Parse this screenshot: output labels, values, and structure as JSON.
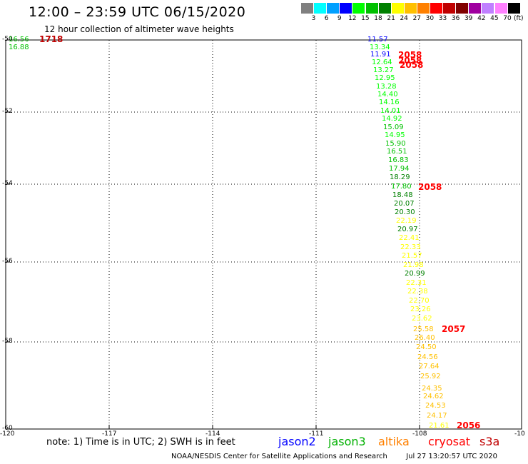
{
  "header": {
    "title": "12:00 – 23:59 UTC 06/15/2020",
    "subtitle": "12 hour collection of altimeter wave heights"
  },
  "color_scale": {
    "unit": "(ft)",
    "bins": [
      {
        "label": "3",
        "color": "#808080"
      },
      {
        "label": "6",
        "color": "#00ffff"
      },
      {
        "label": "9",
        "color": "#00a0ff"
      },
      {
        "label": "12",
        "color": "#0000ff"
      },
      {
        "label": "15",
        "color": "#00ff00"
      },
      {
        "label": "18",
        "color": "#00c000"
      },
      {
        "label": "21",
        "color": "#008000"
      },
      {
        "label": "24",
        "color": "#ffff00"
      },
      {
        "label": "27",
        "color": "#ffc000"
      },
      {
        "label": "30",
        "color": "#ff8000"
      },
      {
        "label": "33",
        "color": "#ff0000"
      },
      {
        "label": "36",
        "color": "#c00000"
      },
      {
        "label": "39",
        "color": "#800000"
      },
      {
        "label": "42",
        "color": "#a000a0"
      },
      {
        "label": "45",
        "color": "#c080ff"
      },
      {
        "label": "70",
        "color": "#ff80ff"
      },
      {
        "label": "",
        "color": "#000000"
      }
    ]
  },
  "map": {
    "lat_labels": [
      "-50",
      "-52",
      "-54",
      "-56",
      "-58",
      "-60"
    ],
    "lon_labels": [
      "-120",
      "-117",
      "-114",
      "-111",
      "-108",
      "-10"
    ],
    "wave_heights": [
      {
        "v": "16.56",
        "c": "#00c000"
      },
      {
        "v": "16.88",
        "c": "#00c000"
      },
      {
        "v": "11.57",
        "c": "#0000ff"
      },
      {
        "v": "13.34",
        "c": "#00ff00"
      },
      {
        "v": "11.91",
        "c": "#0000ff"
      },
      {
        "v": "12.64",
        "c": "#00ff00"
      },
      {
        "v": "13.27",
        "c": "#00ff00"
      },
      {
        "v": "12.95",
        "c": "#00ff00"
      },
      {
        "v": "13.28",
        "c": "#00ff00"
      },
      {
        "v": "14.40",
        "c": "#00ff00"
      },
      {
        "v": "14.16",
        "c": "#00ff00"
      },
      {
        "v": "14.01",
        "c": "#00ff00"
      },
      {
        "v": "14.92",
        "c": "#00ff00"
      },
      {
        "v": "15.09",
        "c": "#00c000"
      },
      {
        "v": "14.95",
        "c": "#00ff00"
      },
      {
        "v": "15.90",
        "c": "#00c000"
      },
      {
        "v": "16.51",
        "c": "#00c000"
      },
      {
        "v": "16.83",
        "c": "#00c000"
      },
      {
        "v": "17.94",
        "c": "#00c000"
      },
      {
        "v": "18.29",
        "c": "#008000"
      },
      {
        "v": "17.80",
        "c": "#00c000"
      },
      {
        "v": "18.48",
        "c": "#008000"
      },
      {
        "v": "20.07",
        "c": "#008000"
      },
      {
        "v": "20.30",
        "c": "#008000"
      },
      {
        "v": "22.19",
        "c": "#ffff00"
      },
      {
        "v": "20.97",
        "c": "#008000"
      },
      {
        "v": "22.41",
        "c": "#ffff00"
      },
      {
        "v": "22.33",
        "c": "#ffff00"
      },
      {
        "v": "21.57",
        "c": "#ffff00"
      },
      {
        "v": "21.98",
        "c": "#ffff00"
      },
      {
        "v": "20.99",
        "c": "#008000"
      },
      {
        "v": "22.31",
        "c": "#ffff00"
      },
      {
        "v": "22.38",
        "c": "#ffff00"
      },
      {
        "v": "22.70",
        "c": "#ffff00"
      },
      {
        "v": "23.26",
        "c": "#ffff00"
      },
      {
        "v": "23.62",
        "c": "#ffff00"
      },
      {
        "v": "25.58",
        "c": "#ffc000"
      },
      {
        "v": "26.40",
        "c": "#ffc000"
      },
      {
        "v": "24.50",
        "c": "#ffc000"
      },
      {
        "v": "24.56",
        "c": "#ffc000"
      },
      {
        "v": "27.64",
        "c": "#ffc000"
      },
      {
        "v": "25.92",
        "c": "#ffc000"
      },
      {
        "v": "24.35",
        "c": "#ffc000"
      },
      {
        "v": "24.62",
        "c": "#ffc000"
      },
      {
        "v": "24.53",
        "c": "#ffc000"
      },
      {
        "v": "24.17",
        "c": "#ffc000"
      },
      {
        "v": "21.61",
        "c": "#ffff00"
      }
    ],
    "time_labels": [
      {
        "v": "1718",
        "c": "#c00000"
      },
      {
        "v": "2058",
        "c": "#ff0000"
      },
      {
        "v": "2058",
        "c": "#ff0000"
      },
      {
        "v": "2058",
        "c": "#ff0000"
      },
      {
        "v": "2058",
        "c": "#ff0000"
      },
      {
        "v": "2057",
        "c": "#ff0000"
      },
      {
        "v": "2056",
        "c": "#ff0000"
      }
    ]
  },
  "footer": {
    "note": "note: 1) Time is in UTC; 2) SWH is in feet",
    "legend": [
      {
        "label": "jason2",
        "color": "#0000ff"
      },
      {
        "label": "jason3",
        "color": "#00b000"
      },
      {
        "label": "altika",
        "color": "#ff8000"
      },
      {
        "label": "cryosat",
        "color": "#ff0000"
      },
      {
        "label": "s3a",
        "color": "#c00000"
      }
    ],
    "credit": "NOAA/NESDIS Center for Satellite Applications and Research",
    "timestamp": "Jul 27 13:20:57 UTC 2020"
  }
}
